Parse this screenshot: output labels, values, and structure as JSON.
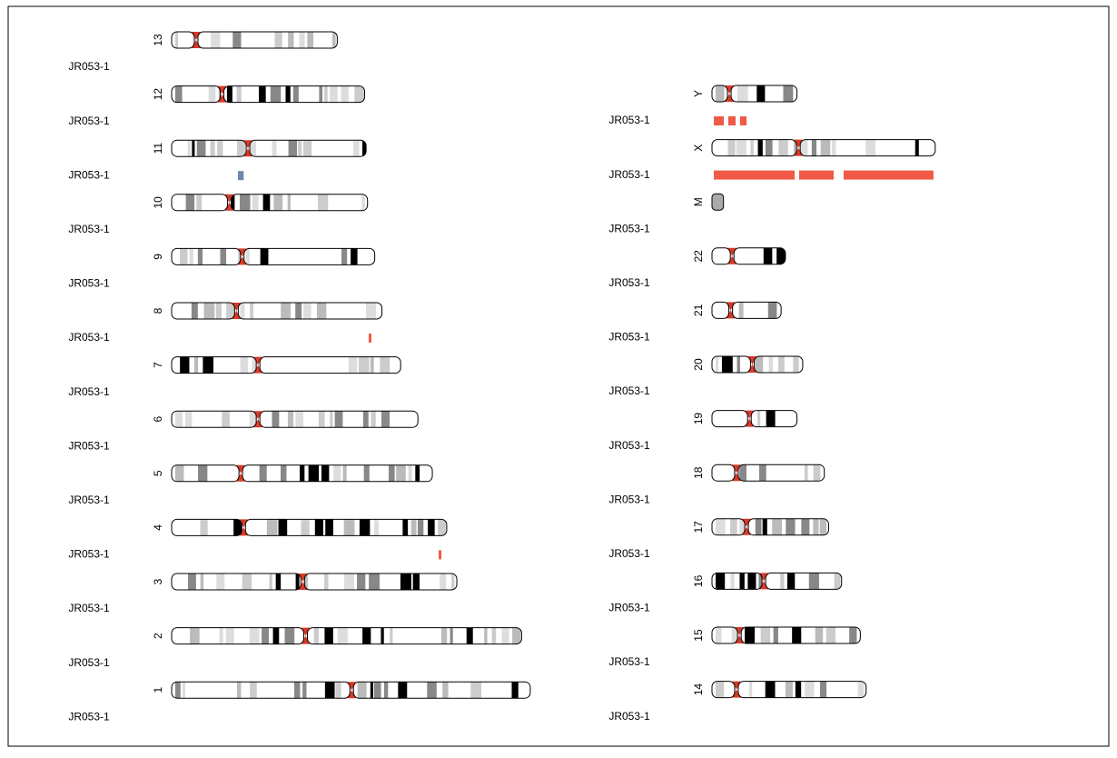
{
  "columns": [
    {
      "rows": [
        {
          "chromosome": "13",
          "sample": "JR053-1",
          "length": 115,
          "centromere": 17,
          "segments": []
        },
        {
          "chromosome": "12",
          "sample": "JR053-1",
          "length": 134,
          "centromere": 35,
          "segments": []
        },
        {
          "chromosome": "11",
          "sample": "JR053-1",
          "length": 135,
          "centromere": 53,
          "segments": [
            {
              "start": 46,
              "end": 50,
              "color": "#6f87a8"
            }
          ]
        },
        {
          "chromosome": "10",
          "sample": "JR053-1",
          "length": 136,
          "centromere": 40,
          "segments": []
        },
        {
          "chromosome": "9",
          "sample": "JR053-1",
          "length": 141,
          "centromere": 49,
          "segments": []
        },
        {
          "chromosome": "8",
          "sample": "JR053-1",
          "length": 146,
          "centromere": 45,
          "segments": [
            {
              "start": 136.8,
              "end": 138.7,
              "color": "#f05a46"
            }
          ]
        },
        {
          "chromosome": "7",
          "sample": "JR053-1",
          "length": 159,
          "centromere": 60,
          "segments": []
        },
        {
          "chromosome": "6",
          "sample": "JR053-1",
          "length": 171,
          "centromere": 60,
          "segments": []
        },
        {
          "chromosome": "5",
          "sample": "JR053-1",
          "length": 181,
          "centromere": 48,
          "segments": []
        },
        {
          "chromosome": "4",
          "sample": "JR053-1",
          "length": 191,
          "centromere": 50,
          "segments": [
            {
              "start": 185.4,
              "end": 187.3,
              "color": "#f05a46"
            }
          ]
        },
        {
          "chromosome": "3",
          "sample": "JR053-1",
          "length": 198,
          "centromere": 91,
          "segments": []
        },
        {
          "chromosome": "2",
          "sample": "JR053-1",
          "length": 243,
          "centromere": 93,
          "segments": []
        },
        {
          "chromosome": "1",
          "sample": "JR053-1",
          "length": 249,
          "centromere": 125,
          "segments": []
        }
      ]
    },
    {
      "rows": [
        {
          "chromosome": "Y",
          "sample": "JR053-1",
          "length": 59,
          "centromere": 12,
          "segments": [
            {
              "start": 1.3,
              "end": 8.2,
              "color": "#f05a46"
            },
            {
              "start": 11.3,
              "end": 16.4,
              "color": "#f05a46"
            },
            {
              "start": 19.5,
              "end": 24,
              "color": "#f05a46"
            }
          ]
        },
        {
          "chromosome": "X",
          "sample": "JR053-1",
          "length": 155,
          "centromere": 60,
          "segments": [
            {
              "start": 1.3,
              "end": 57.4,
              "color": "#f05a46"
            },
            {
              "start": 60.5,
              "end": 84.5,
              "color": "#f05a46"
            },
            {
              "start": 91.4,
              "end": 153.8,
              "color": "#f05a46"
            }
          ]
        },
        {
          "chromosome": "M",
          "sample": "JR053-1",
          "length": 8,
          "centromere": 0,
          "segments": []
        },
        {
          "chromosome": "22",
          "sample": "JR053-1",
          "length": 51,
          "centromere": 14,
          "segments": []
        },
        {
          "chromosome": "21",
          "sample": "JR053-1",
          "length": 48,
          "centromere": 13,
          "segments": []
        },
        {
          "chromosome": "20",
          "sample": "JR053-1",
          "length": 63,
          "centromere": 28,
          "segments": []
        },
        {
          "chromosome": "19",
          "sample": "JR053-1",
          "length": 59,
          "centromere": 26,
          "segments": []
        },
        {
          "chromosome": "18",
          "sample": "JR053-1",
          "length": 78,
          "centromere": 17,
          "segments": []
        },
        {
          "chromosome": "17",
          "sample": "JR053-1",
          "length": 81,
          "centromere": 24,
          "segments": []
        },
        {
          "chromosome": "16",
          "sample": "JR053-1",
          "length": 90,
          "centromere": 36,
          "segments": []
        },
        {
          "chromosome": "15",
          "sample": "JR053-1",
          "length": 103,
          "centromere": 19,
          "segments": []
        },
        {
          "chromosome": "14",
          "sample": "JR053-1",
          "length": 107,
          "centromere": 17,
          "segments": []
        }
      ]
    }
  ]
}
